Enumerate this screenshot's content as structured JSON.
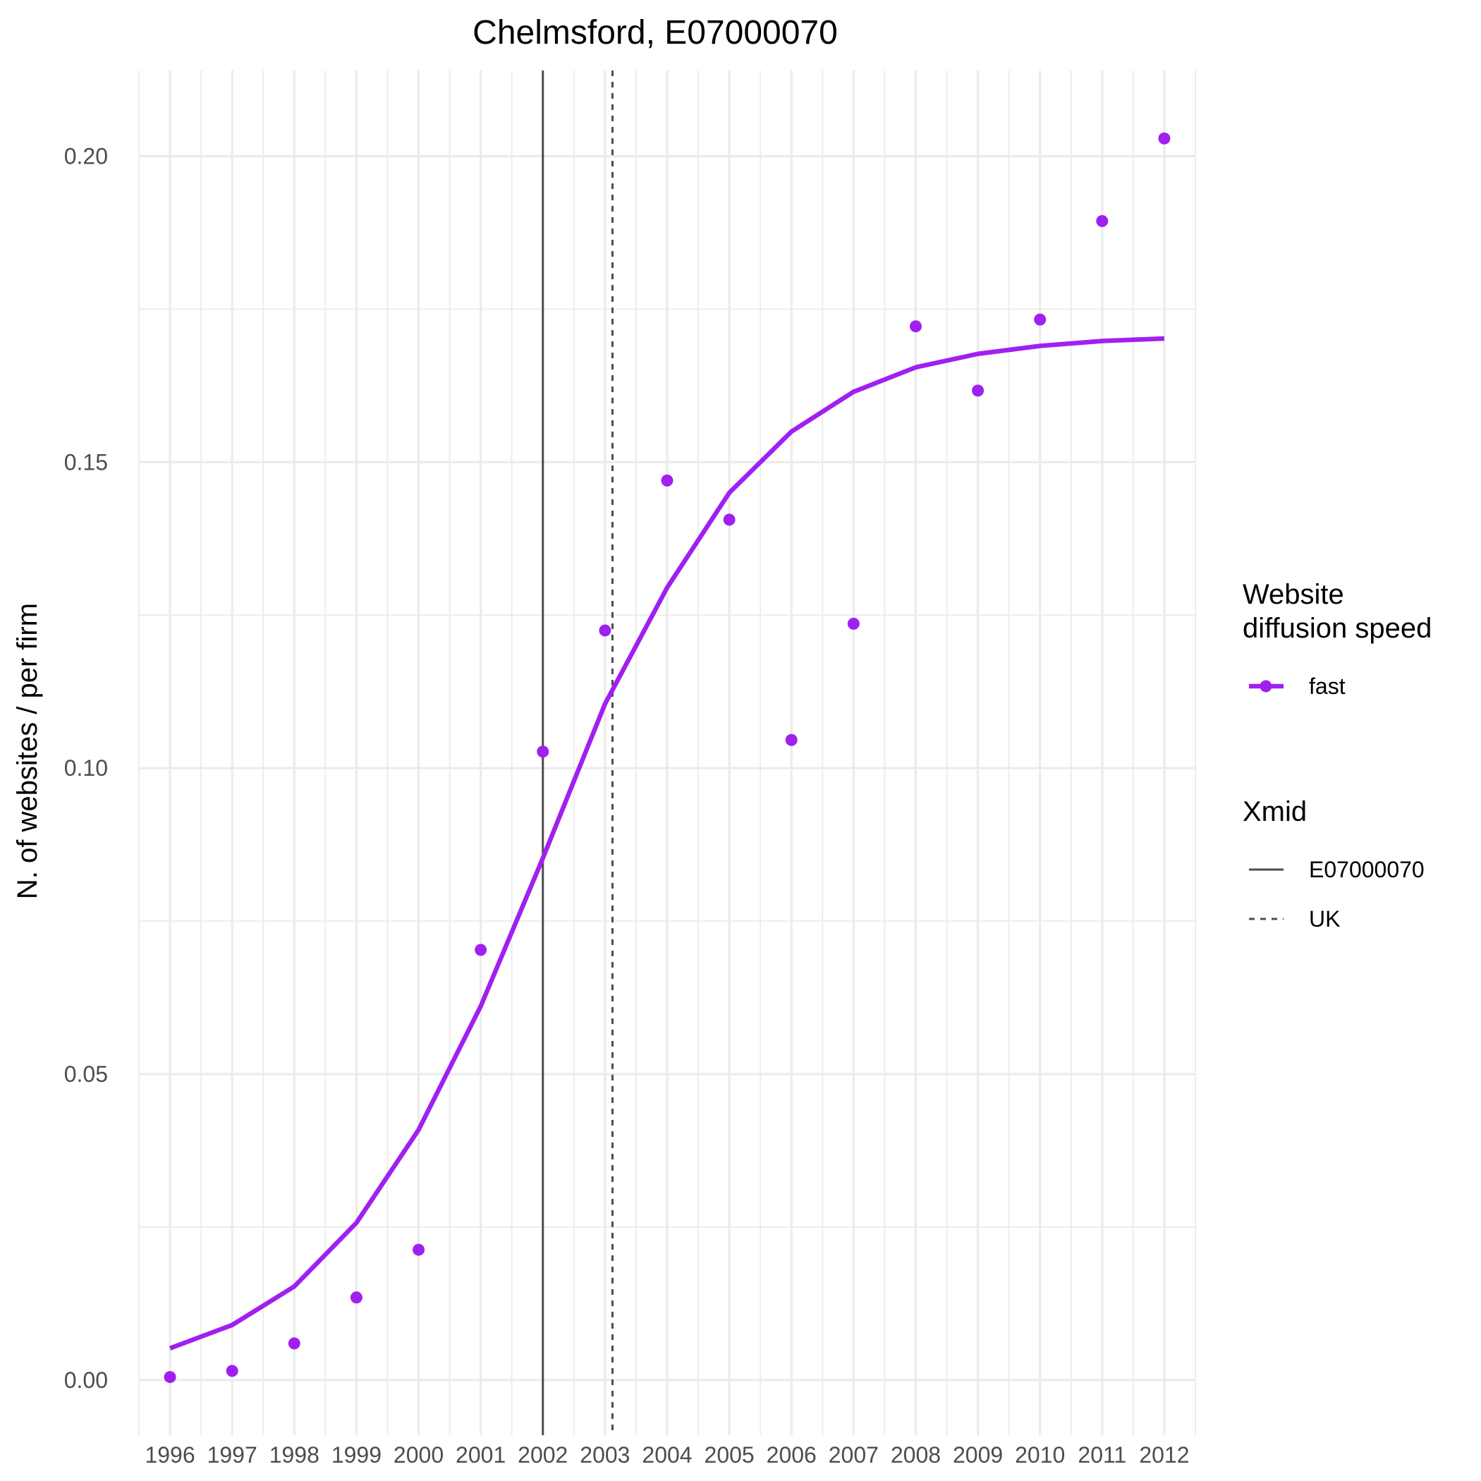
{
  "chart_data": {
    "type": "line",
    "title": "Chelmsford, E07000070",
    "xlabel": "",
    "ylabel": "N. of websites / per firm",
    "x": [
      1996,
      1997,
      1998,
      1999,
      2000,
      2001,
      2002,
      2003,
      2004,
      2005,
      2006,
      2007,
      2008,
      2009,
      2010,
      2011,
      2012
    ],
    "x_tick_labels": [
      "1996",
      "1997",
      "1998",
      "1999",
      "2000",
      "2001",
      "2002",
      "2003",
      "2004",
      "2005",
      "2006",
      "2007",
      "2008",
      "2009",
      "2010",
      "2011",
      "2012"
    ],
    "xlim": [
      1995.5,
      2012.5
    ],
    "ylim": [
      -0.009,
      0.214
    ],
    "y_ticks": [
      0.0,
      0.05,
      0.1,
      0.15,
      0.2
    ],
    "y_tick_labels": [
      "0.00",
      "0.05",
      "0.10",
      "0.15",
      "0.20"
    ],
    "grid": true,
    "series": [
      {
        "name": "fast",
        "color": "#a020f0",
        "points": [
          0.0005,
          0.0015,
          0.006,
          0.0135,
          0.0213,
          0.0703,
          0.1027,
          0.1225,
          0.147,
          0.1406,
          0.1046,
          0.1236,
          0.1722,
          0.1617,
          0.1733,
          0.1894,
          0.2029
        ],
        "fitted": [
          0.0052,
          0.009,
          0.0153,
          0.0257,
          0.0409,
          0.0611,
          0.0853,
          0.1105,
          0.1295,
          0.145,
          0.155,
          0.1615,
          0.1655,
          0.1677,
          0.169,
          0.1698,
          0.1702
        ]
      }
    ],
    "vlines": [
      {
        "name": "E07000070",
        "x": 2002.0,
        "linetype": "solid",
        "color": "#4d4d4d"
      },
      {
        "name": "UK",
        "x": 2003.12,
        "linetype": "dotted",
        "color": "#4d4d4d"
      }
    ],
    "legend": {
      "position": "right",
      "groups": [
        {
          "title_lines": [
            "Website",
            "diffusion speed"
          ],
          "items": [
            {
              "label": "fast",
              "kind": "point-line",
              "color": "#a020f0"
            }
          ]
        },
        {
          "title_lines": [
            "Xmid"
          ],
          "items": [
            {
              "label": "E07000070",
              "kind": "solid"
            },
            {
              "label": "UK",
              "kind": "dotted"
            }
          ]
        }
      ]
    }
  }
}
